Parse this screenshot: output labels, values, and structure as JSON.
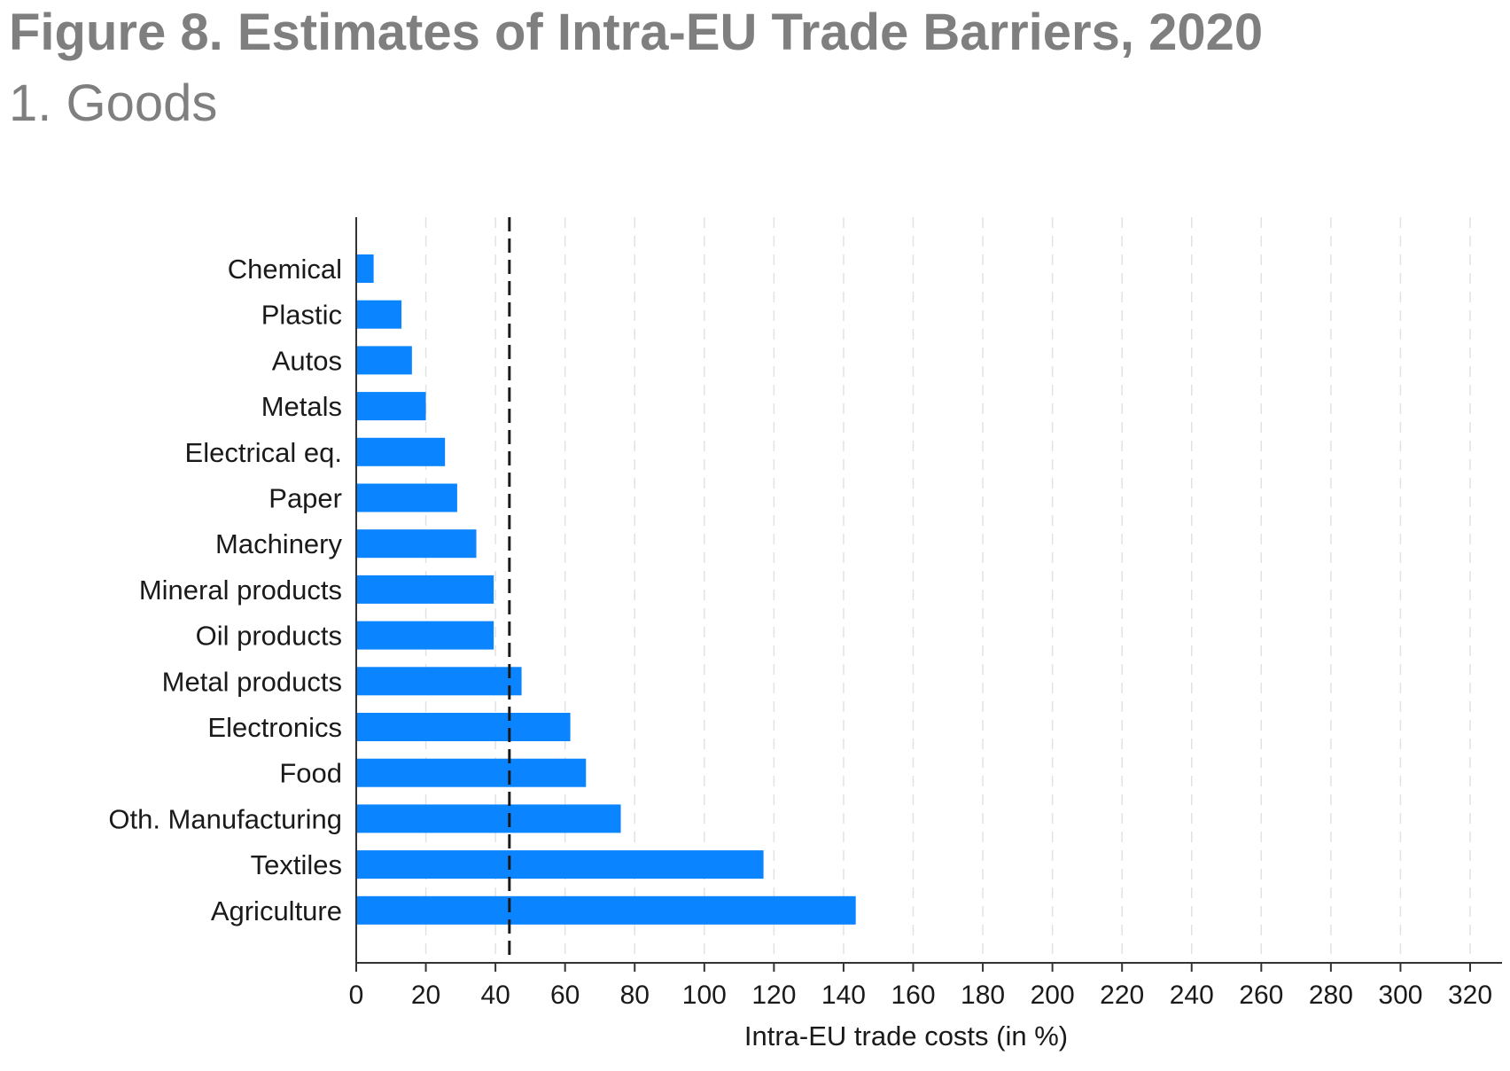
{
  "figure": {
    "title": "Figure 8. Estimates of Intra-EU Trade Barriers, 2020",
    "subtitle": "1. Goods"
  },
  "chart_data": {
    "type": "bar",
    "orientation": "horizontal",
    "categories": [
      "Chemical",
      "Plastic",
      "Autos",
      "Metals",
      "Electrical eq.",
      "Paper",
      "Machinery",
      "Mineral products",
      "Oil products",
      "Metal products",
      "Electronics",
      "Food",
      "Oth. Manufacturing",
      "Textiles",
      "Agriculture"
    ],
    "values": [
      5,
      13,
      16,
      20,
      25.5,
      29,
      34.5,
      39.5,
      39.5,
      47.5,
      61.5,
      66,
      76,
      117,
      143.5
    ],
    "xlabel": "Intra-EU trade costs (in %)",
    "ylabel": "",
    "xlim": [
      0,
      320
    ],
    "xticks": [
      0,
      20,
      40,
      60,
      80,
      100,
      120,
      140,
      160,
      180,
      200,
      220,
      240,
      260,
      280,
      300,
      320
    ],
    "grid": "vertical dashed",
    "reference_line": {
      "value": 44,
      "style": "dashed"
    },
    "bar_color": "#0a84ff"
  }
}
